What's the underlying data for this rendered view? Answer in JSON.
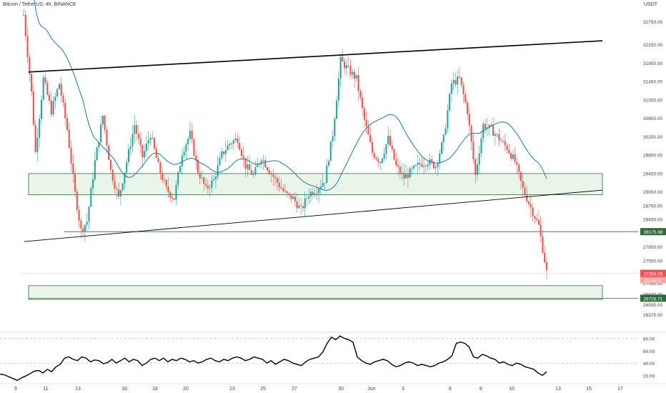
{
  "header": {
    "title": "Bitcoin / TetherUS, 4h, BINANCE",
    "unit": "USDT"
  },
  "colors": {
    "up": "#26a69a",
    "down": "#ef5350",
    "ma": "#1f7a9c",
    "zone_fill": "#e9f5e9",
    "zone_stroke": "#2e6b3a",
    "trend": "#000000",
    "price_badge": "#ef5350",
    "level_badge": "#2e6b3a"
  },
  "chart_data": {
    "type": "candlestick",
    "price_ticks": [
      "32750.00",
      "32250.00",
      "31850.00",
      "31450.00",
      "31050.00",
      "30650.00",
      "30250.00",
      "29850.00",
      "29450.00",
      "29050.00",
      "28750.00",
      "28450.00",
      "27850.00",
      "27550.00",
      "27060.00",
      "26820.00",
      "26595.00",
      "26375.00"
    ],
    "x_labels": [
      "9",
      "11",
      "13",
      "16",
      "18",
      "20",
      "23",
      "25",
      "27",
      "30",
      "Jun",
      "3",
      "6",
      "8",
      "10",
      "13",
      "15",
      "17"
    ],
    "current_price": "27269.05",
    "countdown": "02:19:17",
    "level_badges": [
      "28175.98",
      "26726.71"
    ],
    "oscillator": {
      "ticks": [
        "80.00",
        "60.00",
        "40.00",
        "20.00"
      ],
      "values": [
        22,
        21,
        18,
        15,
        12,
        16,
        19,
        23,
        27,
        28,
        24,
        30,
        26,
        34,
        38,
        48,
        50,
        46,
        44,
        50,
        48,
        42,
        45,
        44,
        39,
        41,
        46,
        40,
        44,
        48,
        42,
        46,
        44,
        36,
        40,
        46,
        48,
        44,
        48,
        42,
        46,
        44,
        48,
        46,
        42,
        44,
        40,
        42,
        46,
        48,
        44,
        42,
        46,
        44,
        48,
        50,
        48,
        44,
        46,
        50,
        48,
        46,
        40,
        44,
        38,
        42,
        46,
        44,
        40,
        38,
        36,
        42,
        46,
        48,
        50,
        58,
        72,
        82,
        78,
        84,
        80,
        78,
        74,
        50,
        44,
        40,
        38,
        42,
        44,
        46,
        44,
        38,
        34,
        36,
        40,
        42,
        40,
        36,
        38,
        36,
        34,
        36,
        40,
        42,
        46,
        52,
        72,
        74,
        72,
        66,
        50,
        48,
        54,
        52,
        48,
        46,
        40,
        42,
        38,
        36,
        40,
        38,
        34,
        32,
        30,
        24,
        20,
        26
      ]
    },
    "levels": {
      "zone_upper_top": 29440,
      "zone_upper_bottom": 28980,
      "zone_lower_top": 27000,
      "zone_lower_bottom": 26700,
      "support_line": 28175.98,
      "support_line_low": 26726.71
    }
  }
}
